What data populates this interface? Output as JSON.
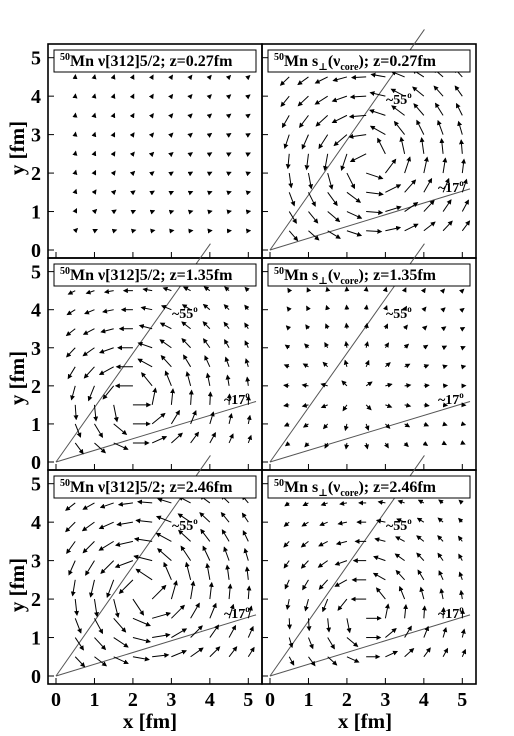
{
  "figure": {
    "xlabel": "x [fm]",
    "ylabel": "y [fm]",
    "xticks": [
      "0",
      "1",
      "2",
      "3",
      "4",
      "5"
    ],
    "yticks": [
      "0",
      "1",
      "2",
      "3",
      "4",
      "5"
    ],
    "angle_55": "~55",
    "angle_17": "~17",
    "degree_sign": "o"
  },
  "chart_data": [
    {
      "type": "vector-field",
      "nucleus_mass": "50",
      "label_text": "Mn ν[312]5/2; z=0.27fm",
      "xlim": [
        0,
        5.2
      ],
      "ylim": [
        0,
        5.2
      ],
      "show_angles": false,
      "field": {
        "kind": "point",
        "amp": 0.08,
        "center": [
          0,
          0
        ],
        "reach": 5
      }
    },
    {
      "type": "vector-field",
      "nucleus_mass": "50",
      "label_main": "Mn s",
      "label_sub": "⊥",
      "label_mid": "(ν",
      "label_sub2": "core",
      "label_end": "); z=0.27fm",
      "xlim": [
        0,
        5.2
      ],
      "ylim": [
        0,
        5.2
      ],
      "show_angles": true,
      "field": {
        "kind": "vortex",
        "amp": 0.45,
        "center": [
          2.6,
          2.3
        ],
        "reach": 5
      }
    },
    {
      "type": "vector-field",
      "nucleus_mass": "50",
      "label_text": "Mn ν[312]5/2; z=1.35fm",
      "xlim": [
        0,
        5.2
      ],
      "ylim": [
        0,
        5.2
      ],
      "show_angles": true,
      "field": {
        "kind": "vortex",
        "amp": 0.45,
        "center": [
          2.0,
          1.6
        ],
        "reach": 3.6
      }
    },
    {
      "type": "vector-field",
      "nucleus_mass": "50",
      "label_main": "Mn s",
      "label_sub": "⊥",
      "label_mid": "(ν",
      "label_sub2": "core",
      "label_end": "); z=1.35fm",
      "xlim": [
        0,
        5.2
      ],
      "ylim": [
        0,
        5.2
      ],
      "show_angles": true,
      "field": {
        "kind": "point",
        "amp": 0.18,
        "center": [
          2.2,
          1.8
        ],
        "reach": 3.2
      }
    },
    {
      "type": "vector-field",
      "nucleus_mass": "50",
      "label_text": "Mn ν[312]5/2; z=2.46fm",
      "xlim": [
        0,
        5.2
      ],
      "ylim": [
        0,
        5.2
      ],
      "show_angles": true,
      "field": {
        "kind": "vortex",
        "amp": 0.5,
        "center": [
          2.3,
          2.2
        ],
        "reach": 4.2
      }
    },
    {
      "type": "vector-field",
      "nucleus_mass": "50",
      "label_main": "Mn s",
      "label_sub": "⊥",
      "label_mid": "(ν",
      "label_sub2": "core",
      "label_end": "); z=2.46fm",
      "xlim": [
        0,
        5.2
      ],
      "ylim": [
        0,
        5.2
      ],
      "show_angles": true,
      "field": {
        "kind": "vortex",
        "amp": 0.38,
        "center": [
          2.5,
          1.6
        ],
        "reach": 3.4
      }
    }
  ]
}
